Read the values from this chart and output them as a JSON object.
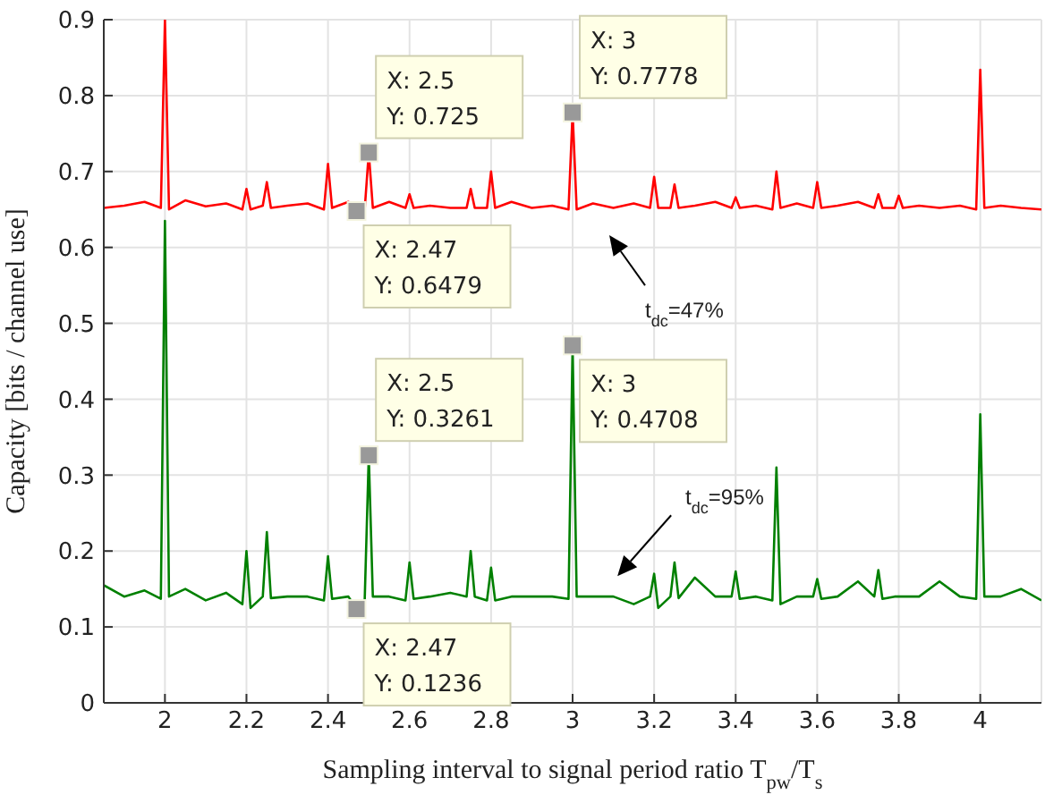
{
  "chart_data": {
    "type": "line",
    "xlabel": "Sampling interval to signal period ratio T$_{pw}$/T$_{s}$",
    "ylabel": "Capacity [bits / channel use]",
    "x": [
      1.85,
      1.9,
      1.95,
      1.99,
      2.0,
      2.01,
      2.05,
      2.1,
      2.15,
      2.19,
      2.2,
      2.21,
      2.24,
      2.25,
      2.26,
      2.3,
      2.35,
      2.39,
      2.4,
      2.41,
      2.45,
      2.47,
      2.49,
      2.5,
      2.51,
      2.55,
      2.59,
      2.6,
      2.61,
      2.65,
      2.7,
      2.74,
      2.75,
      2.76,
      2.79,
      2.8,
      2.81,
      2.85,
      2.9,
      2.95,
      2.99,
      3.0,
      3.01,
      3.05,
      3.1,
      3.15,
      3.19,
      3.2,
      3.21,
      3.24,
      3.25,
      3.26,
      3.3,
      3.35,
      3.39,
      3.4,
      3.41,
      3.45,
      3.49,
      3.5,
      3.51,
      3.55,
      3.59,
      3.6,
      3.61,
      3.65,
      3.7,
      3.74,
      3.75,
      3.76,
      3.79,
      3.8,
      3.81,
      3.85,
      3.9,
      3.95,
      3.99,
      4.0,
      4.01,
      4.05,
      4.1,
      4.15
    ],
    "series": [
      {
        "color": "#ff0000",
        "values": [
          0.652,
          0.655,
          0.66,
          0.652,
          0.9,
          0.65,
          0.662,
          0.654,
          0.658,
          0.65,
          0.677,
          0.65,
          0.655,
          0.686,
          0.652,
          0.655,
          0.658,
          0.65,
          0.71,
          0.652,
          0.66,
          0.6479,
          0.65,
          0.725,
          0.652,
          0.66,
          0.652,
          0.67,
          0.652,
          0.655,
          0.652,
          0.652,
          0.677,
          0.652,
          0.652,
          0.7,
          0.652,
          0.66,
          0.652,
          0.655,
          0.65,
          0.7778,
          0.65,
          0.658,
          0.652,
          0.658,
          0.652,
          0.693,
          0.652,
          0.652,
          0.683,
          0.652,
          0.655,
          0.66,
          0.652,
          0.666,
          0.652,
          0.655,
          0.65,
          0.7,
          0.652,
          0.658,
          0.652,
          0.686,
          0.652,
          0.655,
          0.66,
          0.652,
          0.67,
          0.652,
          0.652,
          0.668,
          0.652,
          0.655,
          0.652,
          0.655,
          0.65,
          0.834,
          0.652,
          0.655,
          0.652,
          0.65
        ]
      },
      {
        "color": "#008000",
        "values": [
          0.155,
          0.14,
          0.148,
          0.137,
          0.635,
          0.14,
          0.15,
          0.135,
          0.145,
          0.13,
          0.2,
          0.125,
          0.14,
          0.225,
          0.138,
          0.14,
          0.14,
          0.135,
          0.193,
          0.137,
          0.14,
          0.1236,
          0.135,
          0.3261,
          0.14,
          0.14,
          0.135,
          0.185,
          0.137,
          0.14,
          0.145,
          0.14,
          0.2,
          0.14,
          0.135,
          0.178,
          0.135,
          0.14,
          0.14,
          0.14,
          0.137,
          0.4708,
          0.14,
          0.14,
          0.14,
          0.13,
          0.14,
          0.17,
          0.125,
          0.14,
          0.185,
          0.138,
          0.165,
          0.14,
          0.14,
          0.173,
          0.137,
          0.14,
          0.135,
          0.31,
          0.13,
          0.14,
          0.14,
          0.163,
          0.137,
          0.14,
          0.16,
          0.14,
          0.175,
          0.137,
          0.14,
          0.14,
          0.14,
          0.14,
          0.16,
          0.14,
          0.137,
          0.38,
          0.14,
          0.14,
          0.15,
          0.135
        ]
      }
    ],
    "xlim": [
      1.85,
      4.15
    ],
    "xticks": [
      2,
      2.2,
      2.4,
      2.6,
      2.8,
      3,
      3.2,
      3.4,
      3.6,
      3.8,
      4
    ],
    "ylim": [
      0,
      0.9
    ],
    "yticks": [
      0,
      0.1,
      0.2,
      0.3,
      0.4,
      0.5,
      0.6,
      0.7,
      0.8,
      0.9
    ],
    "grid": true,
    "marker": "none",
    "line_style": "solid",
    "annotations": [
      {
        "text": "X: 2.5\nY: 0.725",
        "x": 2.5,
        "y": 0.725
      },
      {
        "text": "X: 2.47\nY: 0.6479",
        "x": 2.47,
        "y": 0.6479
      },
      {
        "text": "X: 3\nY: 0.7778",
        "x": 3,
        "y": 0.7778
      },
      {
        "text": "X: 2.5\nY: 0.3261",
        "x": 2.5,
        "y": 0.3261
      },
      {
        "text": "X: 2.47\nY: 0.1236",
        "x": 2.47,
        "y": 0.1236
      },
      {
        "text": "X: 3\nY: 0.4708",
        "x": 3,
        "y": 0.4708
      },
      "t$_{dc}$=47%",
      "t$_{dc}$=95%"
    ]
  }
}
